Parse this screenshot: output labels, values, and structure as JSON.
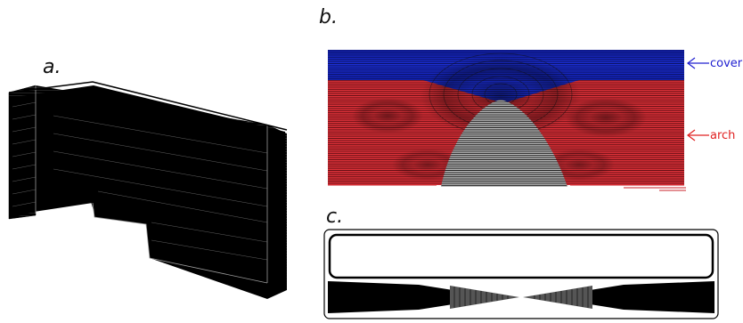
{
  "panels": {
    "a": {
      "label": "a."
    },
    "b": {
      "label": "b."
    },
    "c": {
      "label": "c."
    }
  },
  "annotations": [
    {
      "text": "cover",
      "color": "#2020d0"
    },
    {
      "text": "arch",
      "color": "#e02020"
    }
  ],
  "colors": {
    "cover_band": "#1a22b0",
    "arch_band": "#c8202a",
    "core": "#7a7a7a",
    "ink": "#000000"
  }
}
